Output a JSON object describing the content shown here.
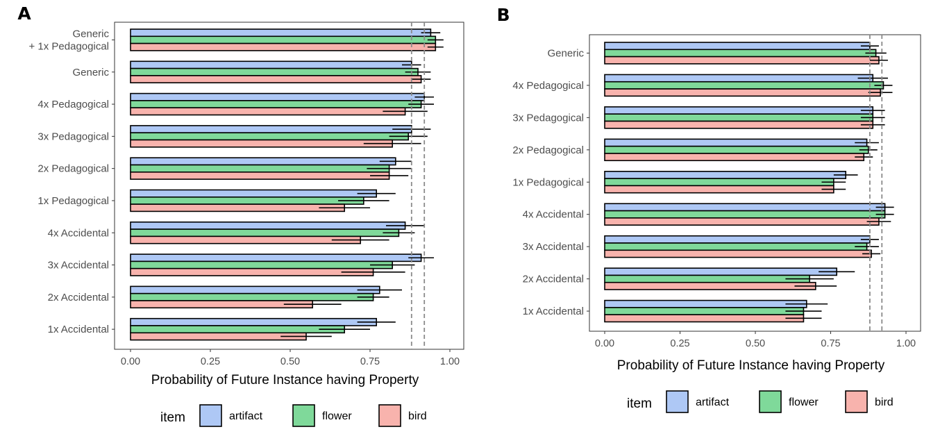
{
  "colors": {
    "artifact": "#aec8f5",
    "flower": "#7fd99a",
    "bird": "#f8b3ad"
  },
  "legend": {
    "title": "item",
    "items": [
      "artifact",
      "flower",
      "bird"
    ]
  },
  "chart_data": [
    {
      "type": "bar",
      "orientation": "horizontal",
      "panel_label": "A",
      "xlabel": "Probability of Future Instance having Property",
      "ylabel": "",
      "xlim": [
        0,
        1
      ],
      "xticks": [
        "0.00",
        "0.25",
        "0.50",
        "0.75",
        "1.00"
      ],
      "reference_lines": [
        0.88,
        0.92
      ],
      "categories": [
        "Generic\n+ 1x Pedagogical",
        "Generic",
        "4x Pedagogical",
        "3x Pedagogical",
        "2x Pedagogical",
        "1x Pedagogical",
        "4x Accidental",
        "3x Accidental",
        "2x Accidental",
        "1x Accidental"
      ],
      "series": [
        {
          "name": "artifact",
          "values": [
            0.94,
            0.88,
            0.92,
            0.88,
            0.83,
            0.77,
            0.86,
            0.91,
            0.78,
            0.77
          ],
          "errors": [
            0.03,
            0.03,
            0.03,
            0.06,
            0.05,
            0.06,
            0.06,
            0.04,
            0.07,
            0.06
          ]
        },
        {
          "name": "flower",
          "values": [
            0.955,
            0.9,
            0.91,
            0.87,
            0.81,
            0.73,
            0.84,
            0.82,
            0.76,
            0.67
          ],
          "errors": [
            0.025,
            0.04,
            0.04,
            0.06,
            0.07,
            0.08,
            0.05,
            0.07,
            0.05,
            0.08
          ]
        },
        {
          "name": "bird",
          "values": [
            0.955,
            0.91,
            0.86,
            0.82,
            0.81,
            0.67,
            0.72,
            0.76,
            0.57,
            0.55
          ],
          "errors": [
            0.025,
            0.03,
            0.07,
            0.09,
            0.06,
            0.08,
            0.09,
            0.1,
            0.09,
            0.08
          ]
        }
      ]
    },
    {
      "type": "bar",
      "orientation": "horizontal",
      "panel_label": "B",
      "xlabel": "Probability of Future Instance having Property",
      "ylabel": "",
      "xlim": [
        0,
        1
      ],
      "xticks": [
        "0.00",
        "0.25",
        "0.50",
        "0.75",
        "1.00"
      ],
      "reference_lines": [
        0.88,
        0.92
      ],
      "categories": [
        "Generic",
        "4x Pedagogical",
        "3x Pedagogical",
        "2x Pedagogical",
        "1x Pedagogical",
        "4x Accidental",
        "3x Accidental",
        "2x Accidental",
        "1x Accidental"
      ],
      "series": [
        {
          "name": "artifact",
          "values": [
            0.88,
            0.89,
            0.89,
            0.87,
            0.8,
            0.93,
            0.88,
            0.77,
            0.67
          ],
          "errors": [
            0.03,
            0.05,
            0.04,
            0.04,
            0.04,
            0.03,
            0.03,
            0.06,
            0.07
          ]
        },
        {
          "name": "flower",
          "values": [
            0.9,
            0.925,
            0.89,
            0.875,
            0.76,
            0.93,
            0.87,
            0.68,
            0.66
          ],
          "errors": [
            0.035,
            0.03,
            0.04,
            0.03,
            0.04,
            0.03,
            0.04,
            0.08,
            0.06
          ]
        },
        {
          "name": "bird",
          "values": [
            0.91,
            0.915,
            0.89,
            0.86,
            0.76,
            0.91,
            0.885,
            0.7,
            0.66
          ],
          "errors": [
            0.03,
            0.04,
            0.04,
            0.03,
            0.04,
            0.04,
            0.03,
            0.07,
            0.06
          ]
        }
      ]
    }
  ]
}
